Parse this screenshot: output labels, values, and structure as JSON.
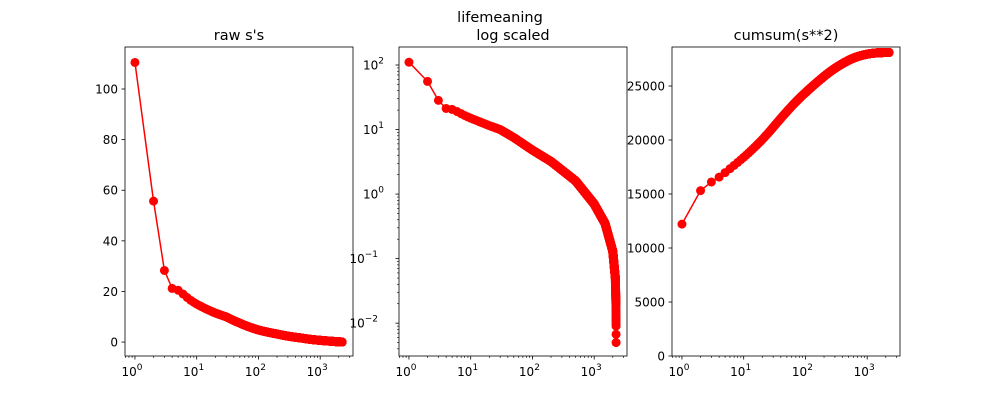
{
  "suptitle": "lifemeaning",
  "colors": {
    "series": "#ff0000",
    "axis": "#000000"
  },
  "chart_data": [
    {
      "type": "line",
      "title": "raw s's",
      "marker": "circle",
      "xscale": "log",
      "yscale": "linear",
      "xlim": [
        0.69,
        3400
      ],
      "ylim": [
        -5.5,
        116.6
      ],
      "xticks": [
        {
          "base": "10",
          "exp": "0",
          "v": 1
        },
        {
          "base": "10",
          "exp": "1",
          "v": 10
        },
        {
          "base": "10",
          "exp": "2",
          "v": 100
        },
        {
          "base": "10",
          "exp": "3",
          "v": 1000
        }
      ],
      "yticks": [
        {
          "label": "0",
          "v": 0
        },
        {
          "label": "20",
          "v": 20
        },
        {
          "label": "40",
          "v": 40
        },
        {
          "label": "60",
          "v": 60
        },
        {
          "label": "80",
          "v": 80
        },
        {
          "label": "100",
          "v": 100
        }
      ],
      "series_kind": "s"
    },
    {
      "type": "line",
      "title": "log scaled",
      "marker": "circle",
      "xscale": "log",
      "yscale": "log",
      "xlim": [
        0.69,
        3400
      ],
      "ylim": [
        0.0031,
        190
      ],
      "xticks": [
        {
          "base": "10",
          "exp": "0",
          "v": 1
        },
        {
          "base": "10",
          "exp": "1",
          "v": 10
        },
        {
          "base": "10",
          "exp": "2",
          "v": 100
        },
        {
          "base": "10",
          "exp": "3",
          "v": 1000
        }
      ],
      "yticks": [
        {
          "base": "10",
          "exp": "−2",
          "v": 0.01
        },
        {
          "base": "10",
          "exp": "−1",
          "v": 0.1
        },
        {
          "base": "10",
          "exp": "0",
          "v": 1
        },
        {
          "base": "10",
          "exp": "1",
          "v": 10
        },
        {
          "base": "10",
          "exp": "2",
          "v": 100
        }
      ],
      "series_kind": "s"
    },
    {
      "type": "line",
      "title": "cumsum(s**2)",
      "marker": "circle",
      "xscale": "log",
      "yscale": "linear",
      "xlim": [
        0.69,
        3400
      ],
      "ylim": [
        0,
        28611
      ],
      "xticks": [
        {
          "base": "10",
          "exp": "0",
          "v": 1
        },
        {
          "base": "10",
          "exp": "1",
          "v": 10
        },
        {
          "base": "10",
          "exp": "2",
          "v": 100
        },
        {
          "base": "10",
          "exp": "3",
          "v": 1000
        }
      ],
      "yticks": [
        {
          "label": "0",
          "v": 0
        },
        {
          "label": "5000",
          "v": 5000
        },
        {
          "label": "10000",
          "v": 10000
        },
        {
          "label": "15000",
          "v": 15000
        },
        {
          "label": "20000",
          "v": 20000
        },
        {
          "label": "25000",
          "v": 25000
        }
      ],
      "series_kind": "cumsum_s2"
    }
  ],
  "singular_values": {
    "n": 2264,
    "index": [
      1,
      2,
      3,
      4,
      5,
      6,
      8,
      10,
      20,
      30,
      50,
      100,
      200,
      500,
      1000,
      1500,
      2000,
      2200,
      2250,
      2262,
      2264
    ],
    "s": [
      110.5,
      55.7,
      28.3,
      21.2,
      20.5,
      19.0,
      16.5,
      15.0,
      11.5,
      10.0,
      7.5,
      4.8,
      3.2,
      1.6,
      0.7,
      0.35,
      0.13,
      0.05,
      0.02,
      0.009,
      0.005
    ]
  }
}
